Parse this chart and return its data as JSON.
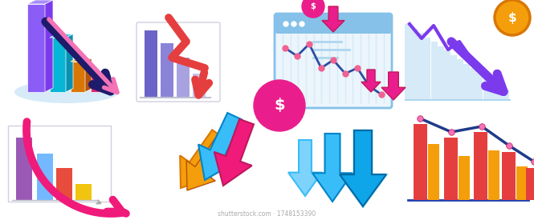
{
  "bg_color": "#ffffff",
  "watermark": "shutterstock.com · 1748153390",
  "panel_coords": {
    "p1": [
      0.0,
      0.5,
      0.25,
      0.5
    ],
    "p2": [
      0.25,
      0.5,
      0.25,
      0.5
    ],
    "p3": [
      0.5,
      0.5,
      0.25,
      0.5
    ],
    "p4": [
      0.75,
      0.5,
      0.25,
      0.5
    ],
    "p5": [
      0.0,
      0.0,
      0.25,
      0.5
    ],
    "p6": [
      0.25,
      0.0,
      0.25,
      0.5
    ],
    "p7": [
      0.5,
      0.0,
      0.25,
      0.5
    ],
    "p8": [
      0.75,
      0.0,
      0.25,
      0.5
    ]
  }
}
